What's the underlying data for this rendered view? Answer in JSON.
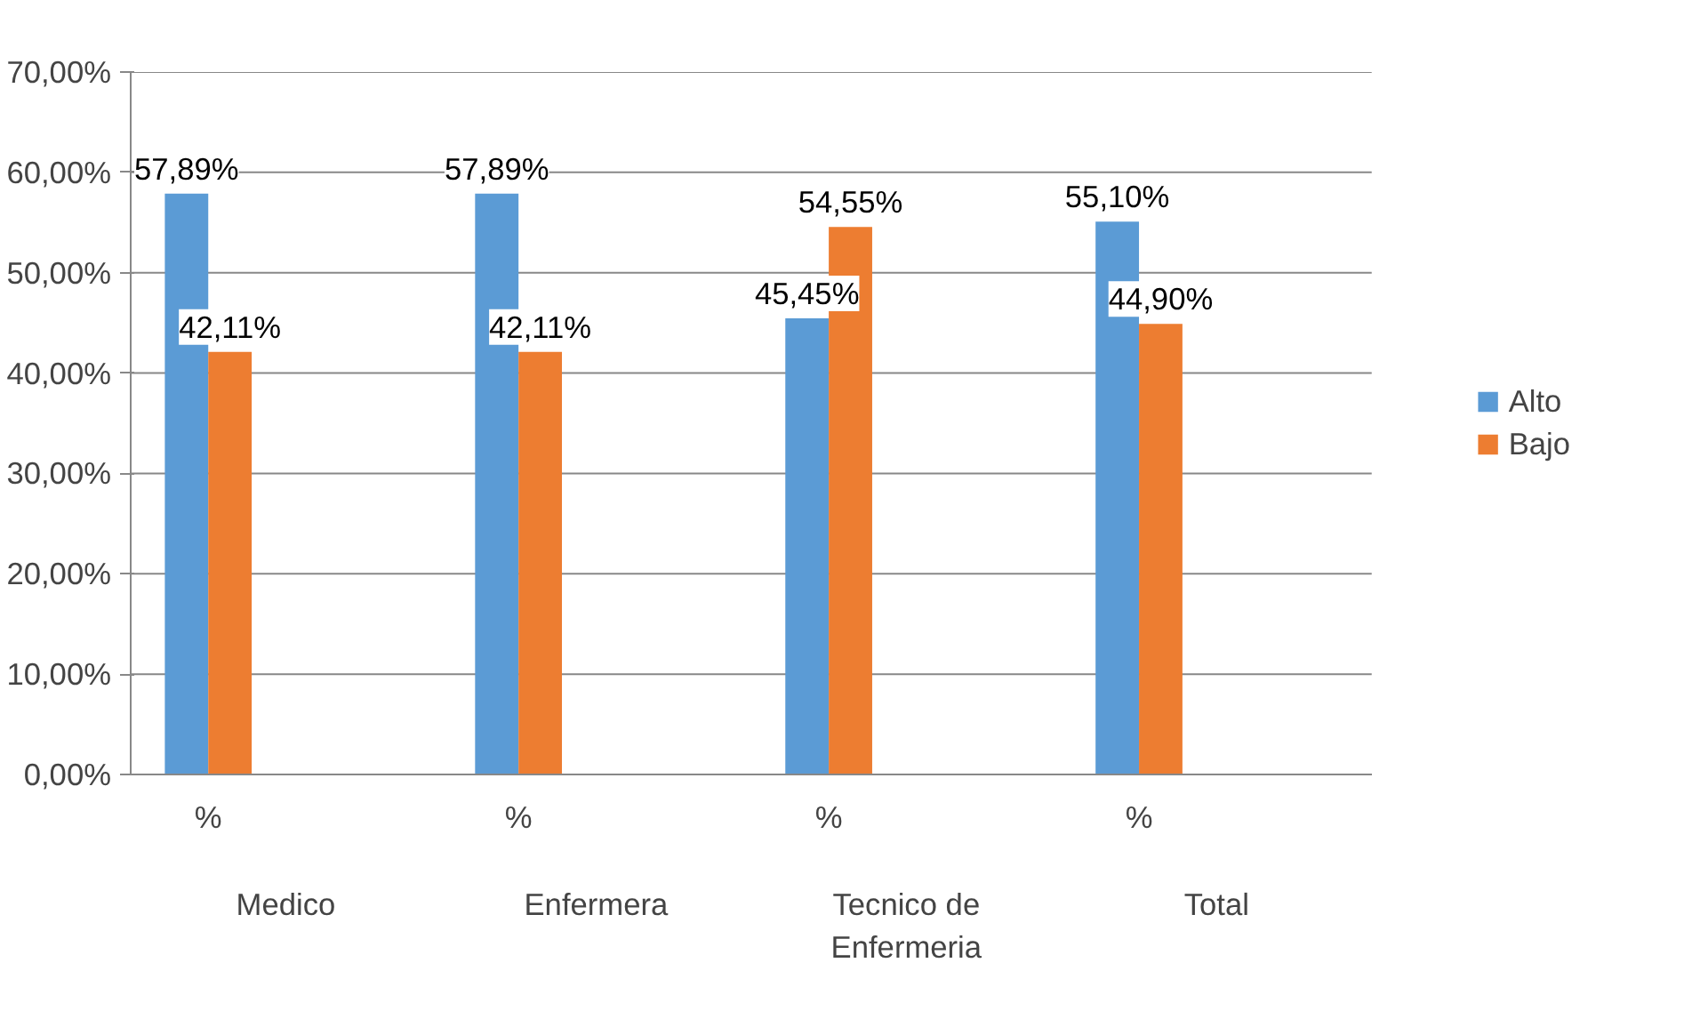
{
  "chart_data": {
    "type": "bar",
    "categories": [
      "%",
      null,
      "%",
      null,
      "%",
      null,
      "%",
      null
    ],
    "annotations": [
      "Medico",
      "Enfermera",
      "Tecnico de Enfermeria",
      "Total"
    ],
    "series": [
      {
        "name": "Alto",
        "color": "#5b9bd5",
        "values": [
          57.89,
          null,
          57.89,
          null,
          45.45,
          null,
          55.1,
          null
        ],
        "value_labels": [
          "57,89%",
          null,
          "57,89%",
          null,
          "45,45%",
          null,
          "55,10%",
          null
        ]
      },
      {
        "name": "Bajo",
        "color": "#ed7d31",
        "values": [
          42.11,
          null,
          42.11,
          null,
          54.55,
          null,
          44.9,
          null
        ],
        "value_labels": [
          "42,11%",
          null,
          "42,11%",
          null,
          "54,55%",
          null,
          "44,90%",
          null
        ]
      }
    ],
    "ylim": [
      0,
      70
    ],
    "yticks": [
      {
        "value": 0,
        "label": "0,00%"
      },
      {
        "value": 10,
        "label": "10,00%"
      },
      {
        "value": 20,
        "label": "20,00%"
      },
      {
        "value": 30,
        "label": "30,00%"
      },
      {
        "value": 40,
        "label": "40,00%"
      },
      {
        "value": 50,
        "label": "50,00%"
      },
      {
        "value": 60,
        "label": "60,00%"
      },
      {
        "value": 70,
        "label": "70,00%"
      }
    ],
    "grid": "y",
    "legend": "right"
  }
}
